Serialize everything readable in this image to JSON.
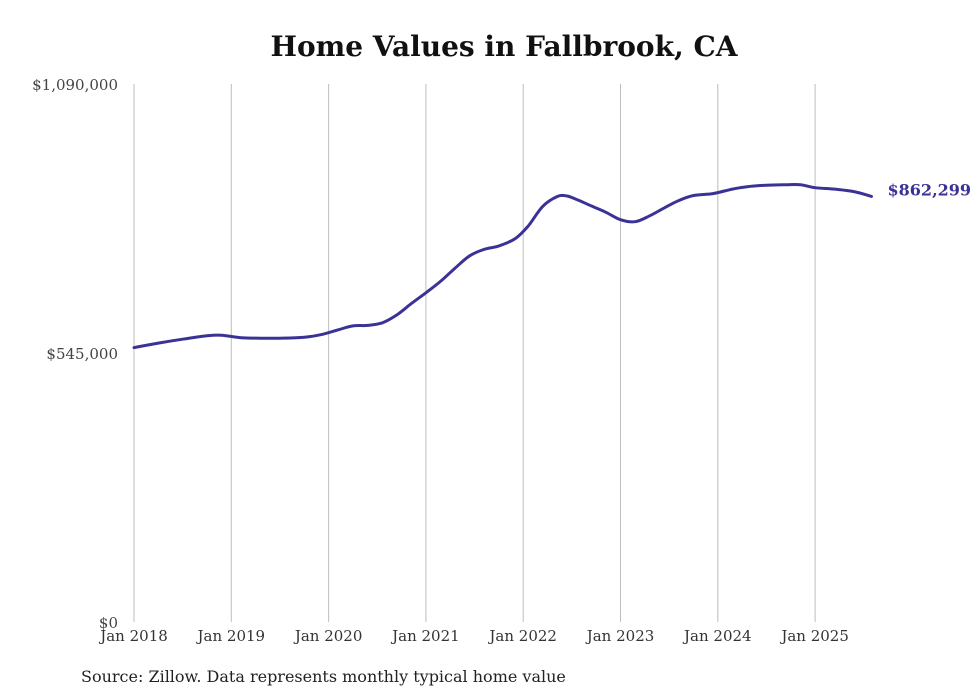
{
  "colors": {
    "series": "#3b3296",
    "grid": "#bdbdbd",
    "text": "#333333"
  },
  "chart_data": {
    "type": "line",
    "title": "Home Values in Fallbrook, CA",
    "source": "Source: Zillow. Data represents monthly typical home value",
    "xlabel": "",
    "ylabel": "",
    "ylim": [
      0,
      1090000
    ],
    "yticks": [
      {
        "value": 0,
        "label": "$0"
      },
      {
        "value": 545000,
        "label": "$545,000"
      },
      {
        "value": 1090000,
        "label": "$1,090,000"
      }
    ],
    "xticks": [
      {
        "value": 2018.0,
        "label": "Jan 2018"
      },
      {
        "value": 2019.0,
        "label": "Jan 2019"
      },
      {
        "value": 2020.0,
        "label": "Jan 2020"
      },
      {
        "value": 2021.0,
        "label": "Jan 2021"
      },
      {
        "value": 2022.0,
        "label": "Jan 2022"
      },
      {
        "value": 2023.0,
        "label": "Jan 2023"
      },
      {
        "value": 2024.0,
        "label": "Jan 2024"
      },
      {
        "value": 2025.0,
        "label": "Jan 2025"
      }
    ],
    "grid": "vertical",
    "end_label": "$862,299",
    "series": [
      {
        "name": "Typical home value",
        "x": [
          2018.0,
          2018.25,
          2018.5,
          2018.75,
          2018.9,
          2019.1,
          2019.3,
          2019.5,
          2019.75,
          2019.92,
          2020.1,
          2020.25,
          2020.4,
          2020.55,
          2020.7,
          2020.85,
          2021.0,
          2021.15,
          2021.3,
          2021.45,
          2021.6,
          2021.75,
          2021.92,
          2022.05,
          2022.2,
          2022.35,
          2022.45,
          2022.55,
          2022.7,
          2022.85,
          2023.0,
          2023.15,
          2023.3,
          2023.45,
          2023.6,
          2023.75,
          2023.95,
          2024.15,
          2024.3,
          2024.5,
          2024.7,
          2024.85,
          2025.0,
          2025.2,
          2025.4,
          2025.58
        ],
        "values": [
          556000,
          565000,
          573000,
          580000,
          581000,
          576000,
          575000,
          575000,
          577000,
          582000,
          592000,
          600000,
          601000,
          606000,
          622000,
          645000,
          667000,
          690000,
          717000,
          742000,
          755000,
          762000,
          777000,
          802000,
          842000,
          862000,
          863000,
          856000,
          843000,
          830000,
          815000,
          811000,
          823000,
          839000,
          854000,
          864000,
          868000,
          877000,
          882000,
          885000,
          886000,
          886000,
          880000,
          877000,
          872000,
          862299
        ]
      }
    ]
  }
}
